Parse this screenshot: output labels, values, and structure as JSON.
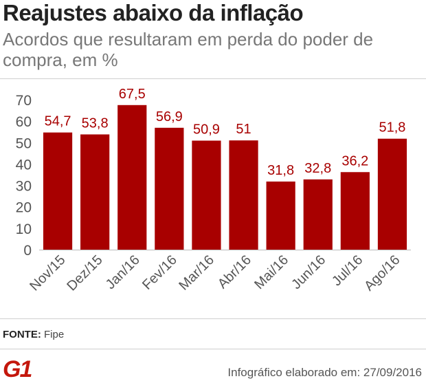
{
  "header": {
    "title": "Reajustes abaixo da inflação",
    "subtitle": "Acordos que resultaram em perda do poder de compra, em %"
  },
  "chart_data": {
    "type": "bar",
    "title": "Reajustes abaixo da inflação",
    "subtitle": "Acordos que resultaram em perda do poder de compra, em %",
    "categories": [
      "Nov/15",
      "Dez/15",
      "Jan/16",
      "Fev/16",
      "Mar/16",
      "Abr/16",
      "Mai/16",
      "Jun/16",
      "Jul/16",
      "Ago/16"
    ],
    "values": [
      54.7,
      53.8,
      67.5,
      56.9,
      50.9,
      51,
      31.8,
      32.8,
      36.2,
      51.8
    ],
    "value_labels": [
      "54,7",
      "53,8",
      "67,5",
      "56,9",
      "50,9",
      "51",
      "31,8",
      "32,8",
      "36,2",
      "51,8"
    ],
    "yticks": [
      0,
      10,
      20,
      30,
      40,
      50,
      60,
      70
    ],
    "ylim": [
      0,
      70
    ],
    "xlabel": "",
    "ylabel": "",
    "grid": false,
    "bar_color": "#a80000",
    "label_color": "#a80000"
  },
  "footer": {
    "source_label": "FONTE:",
    "source_value": "Fipe",
    "logo_text": "G1",
    "logo_color": "#c4170c",
    "credit": "Infográfico elaborado em: 27/09/2016"
  }
}
